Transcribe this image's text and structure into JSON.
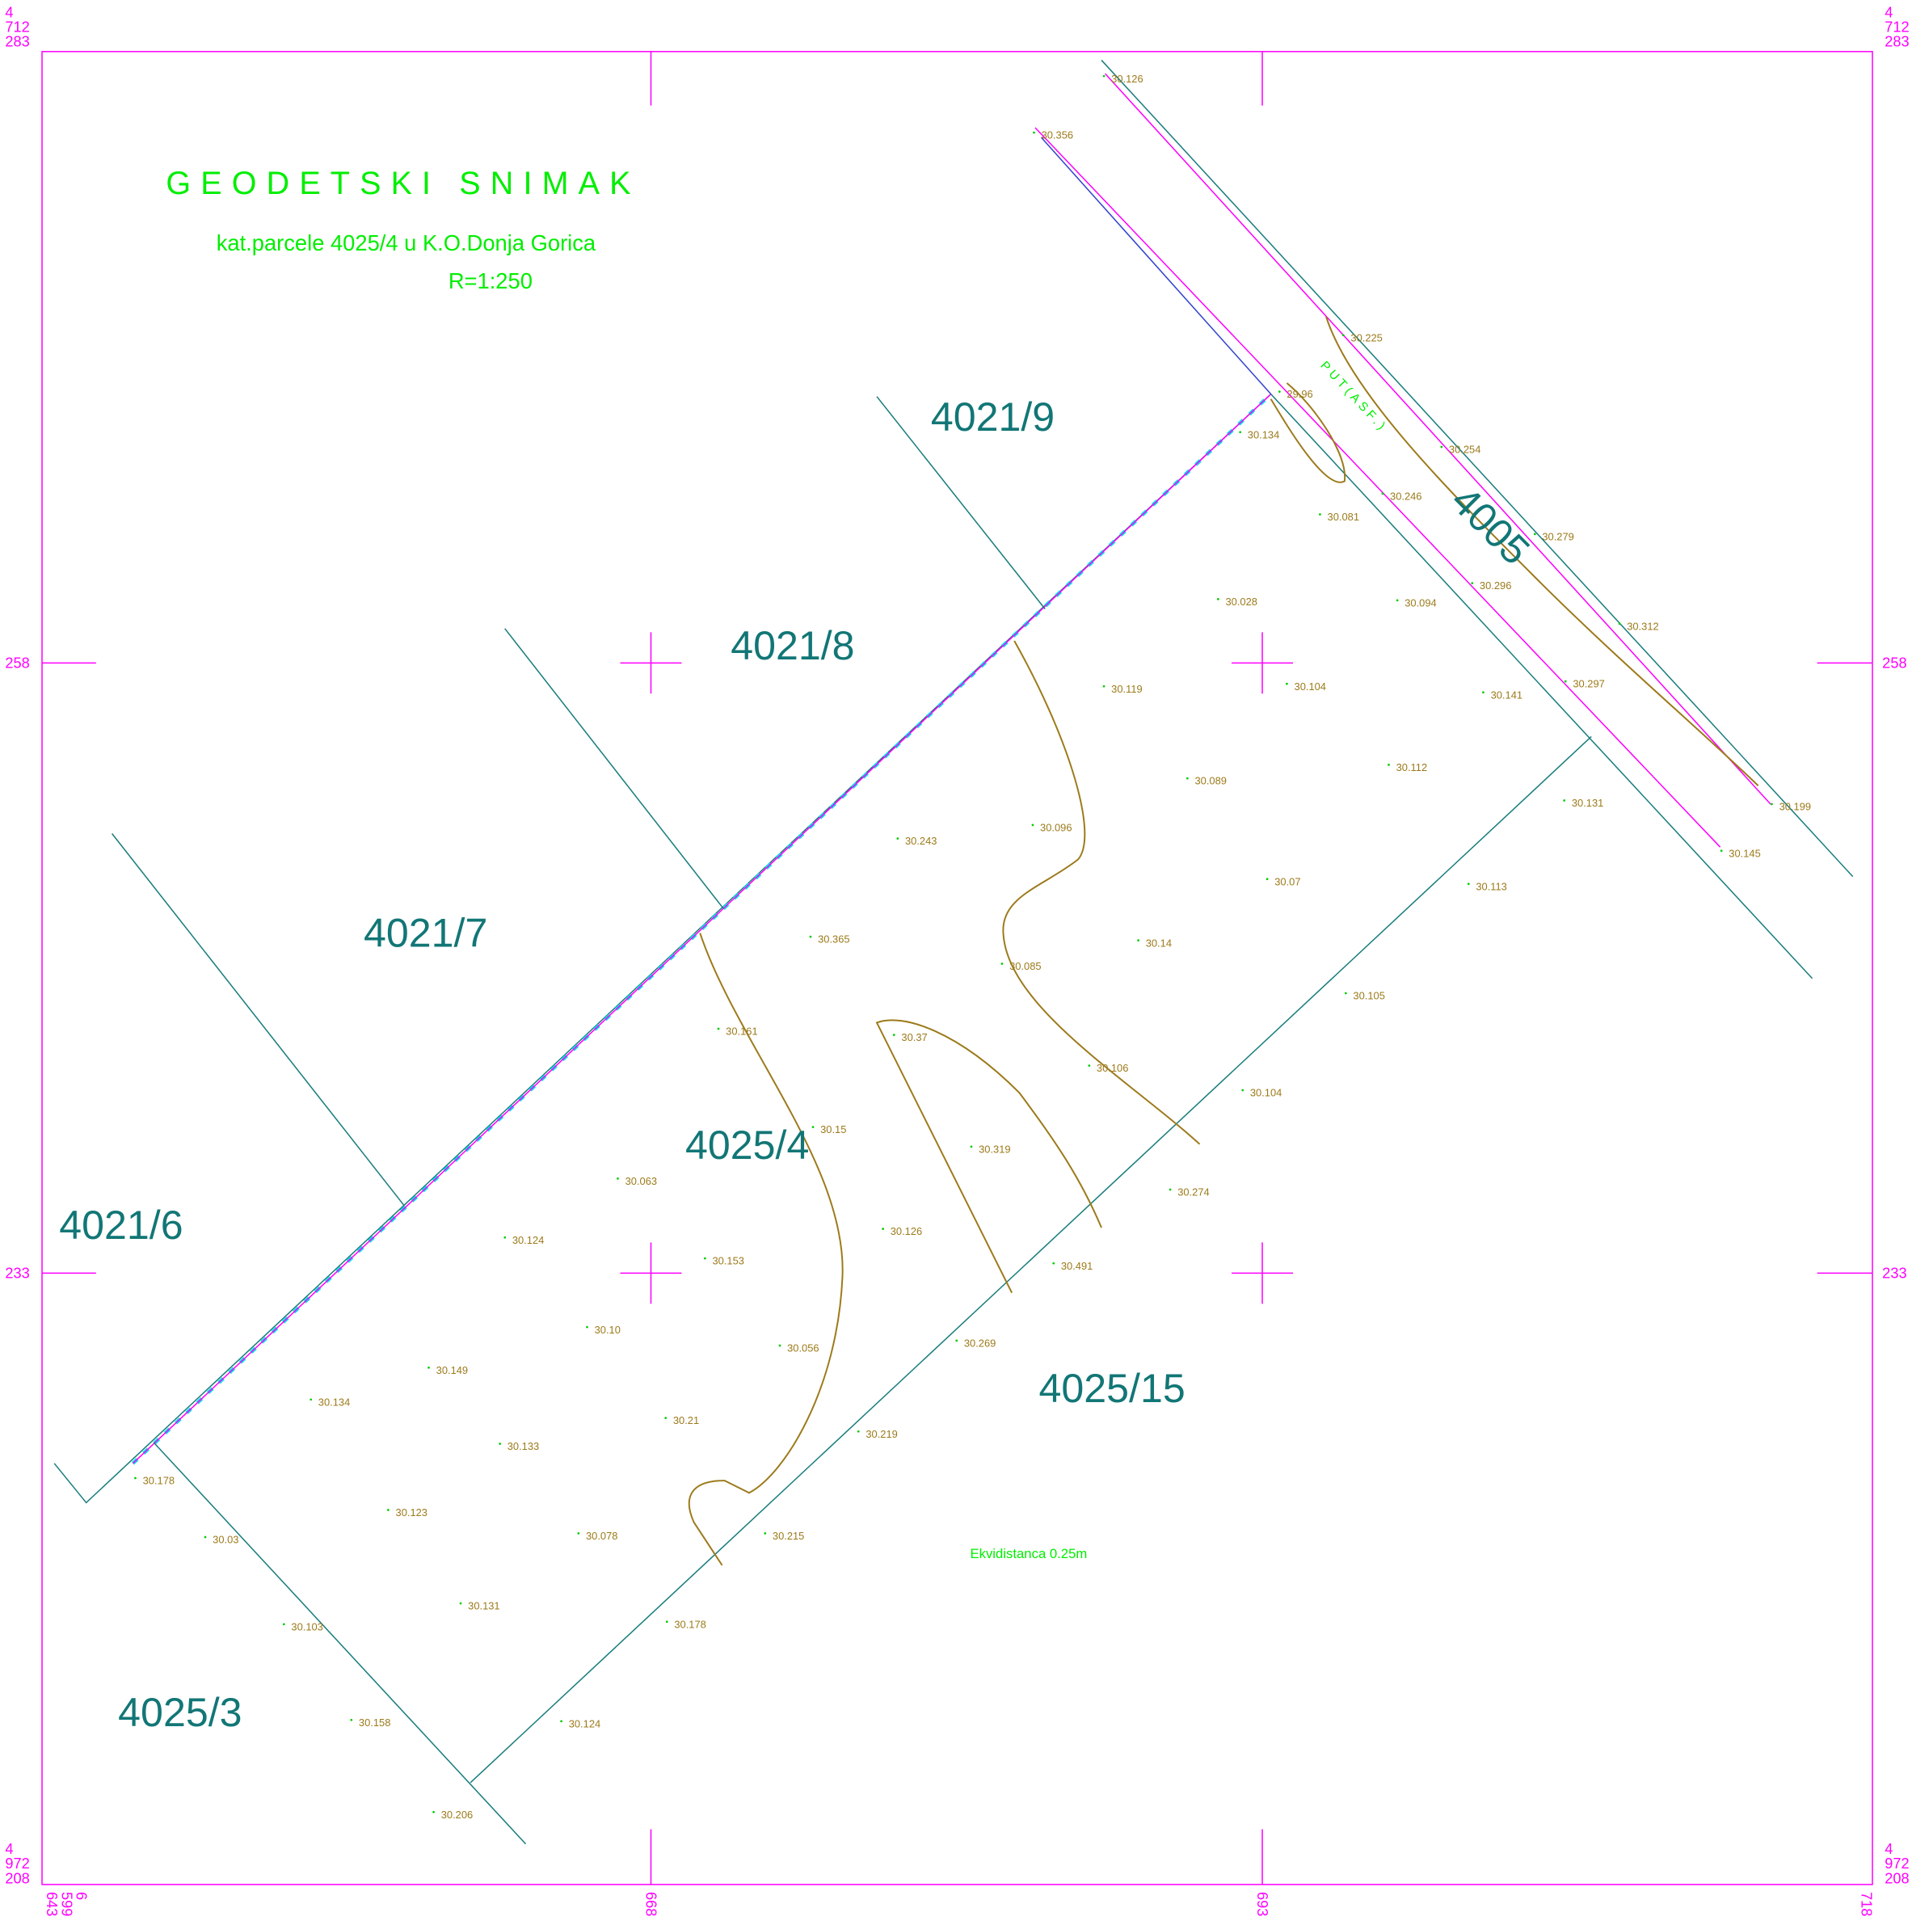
{
  "title": "GEODETSKI SNIMAK",
  "subtitle": "kat.parcele 4025/4 u K.O.Donja Gorica",
  "scale": "R=1:250",
  "road_label": "PUT(ASF.)",
  "equidistance": "Ekvidistanca 0.25m",
  "parcels": [
    "4021/9",
    "4021/8",
    "4021/7",
    "4021/6",
    "4025/4",
    "4025/15",
    "4025/3",
    "4005"
  ],
  "spot_heights": [
    "30.126",
    "30.356",
    "30.225",
    "29.96",
    "30.134",
    "30.254",
    "30.246",
    "30.081",
    "30.279",
    "30.028",
    "30.094",
    "30.296",
    "30.312",
    "30.119",
    "30.104",
    "30.141",
    "30.297",
    "30.089",
    "30.112",
    "30.131",
    "30.199",
    "30.243",
    "30.096",
    "30.145",
    "30.07",
    "30.113",
    "30.365",
    "30.14",
    "30.085",
    "30.105",
    "30.161",
    "30.37",
    "30.106",
    "30.104",
    "30.15",
    "30.319",
    "30.063",
    "30.274",
    "30.124",
    "30.126",
    "30.153",
    "30.491",
    "30.10",
    "30.269",
    "30.056",
    "30.149",
    "30.134",
    "30.21",
    "30.219",
    "30.133",
    "30.178",
    "30.123",
    "30.078",
    "30.215",
    "30.03",
    "30.131",
    "30.103",
    "30.178",
    "30.158",
    "30.124",
    "30.206"
  ],
  "coordinates": {
    "top_left": [
      "4",
      "712",
      "283"
    ],
    "top_right": [
      "4",
      "712",
      "283"
    ],
    "left": [
      "258",
      "233"
    ],
    "right": [
      "258",
      "233"
    ],
    "bottom_left": [
      "4",
      "972",
      "208"
    ],
    "bottom_right": [
      "4",
      "972",
      "208"
    ],
    "bottom_first": [
      "6",
      "599",
      "643"
    ],
    "bottom": [
      "668",
      "693",
      "718"
    ]
  }
}
